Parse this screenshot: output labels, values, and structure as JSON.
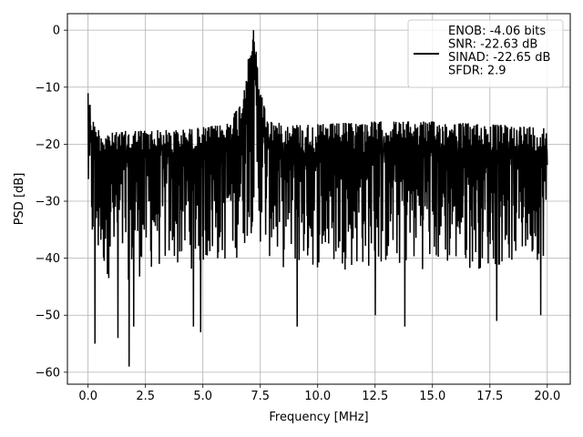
{
  "chart_data": {
    "type": "line",
    "xlabel": "Frequency [MHz]",
    "ylabel": "PSD [dB]",
    "xlim": [
      -0.9,
      21.0
    ],
    "ylim": [
      -62.1,
      2.9
    ],
    "xticks": [
      0.0,
      2.5,
      5.0,
      7.5,
      10.0,
      12.5,
      15.0,
      17.5,
      20.0
    ],
    "xtick_labels": [
      "0.0",
      "2.5",
      "5.0",
      "7.5",
      "10.0",
      "12.5",
      "15.0",
      "17.5",
      "20.0"
    ],
    "yticks": [
      0,
      -10,
      -20,
      -30,
      -40,
      -50,
      -60
    ],
    "ytick_labels": [
      "0",
      "−10",
      "−20",
      "−30",
      "−40",
      "−50",
      "−60"
    ],
    "grid": true,
    "legend_position": "top-right",
    "series": [
      {
        "name": "ENOB: -4.06 bits\nSNR: -22.63 dB\nSINAD: -22.65 dB\nSFDR: 2.9",
        "color": "#000000",
        "x_range": [
          0.0,
          20.0
        ],
        "envelope": {
          "x": [
            0.0,
            0.05,
            0.3,
            1.0,
            2.0,
            3.0,
            4.0,
            5.0,
            6.0,
            6.6,
            6.9,
            7.1,
            7.2,
            7.3,
            7.5,
            7.8,
            8.5,
            10.0,
            12.5,
            15.0,
            17.5,
            20.0
          ],
          "upper": [
            -8.0,
            -12.0,
            -17.0,
            -18.0,
            -17.5,
            -17.5,
            -17.5,
            -17.0,
            -16.5,
            -13.0,
            -7.0,
            -2.0,
            0.0,
            -3.0,
            -10.0,
            -15.5,
            -16.5,
            -16.5,
            -16.0,
            -16.0,
            -16.5,
            -17.0
          ],
          "lower_typical": [
            -32.0,
            -38.0,
            -42.0,
            -44.0,
            -44.0,
            -42.0,
            -42.0,
            -42.0,
            -41.0,
            -40.0,
            -38.0,
            -36.0,
            -34.0,
            -36.0,
            -38.0,
            -40.0,
            -42.0,
            -42.0,
            -42.0,
            -42.0,
            -42.0,
            -40.0
          ]
        },
        "notable_minima": [
          {
            "x": 0.3,
            "y": -55.0
          },
          {
            "x": 1.3,
            "y": -54.0
          },
          {
            "x": 1.8,
            "y": -59.0
          },
          {
            "x": 2.0,
            "y": -52.0
          },
          {
            "x": 4.6,
            "y": -52.0
          },
          {
            "x": 4.9,
            "y": -53.0
          },
          {
            "x": 9.1,
            "y": -52.0
          },
          {
            "x": 12.5,
            "y": -50.0
          },
          {
            "x": 13.8,
            "y": -52.0
          },
          {
            "x": 17.8,
            "y": -51.0
          },
          {
            "x": 19.7,
            "y": -50.0
          }
        ]
      }
    ]
  }
}
